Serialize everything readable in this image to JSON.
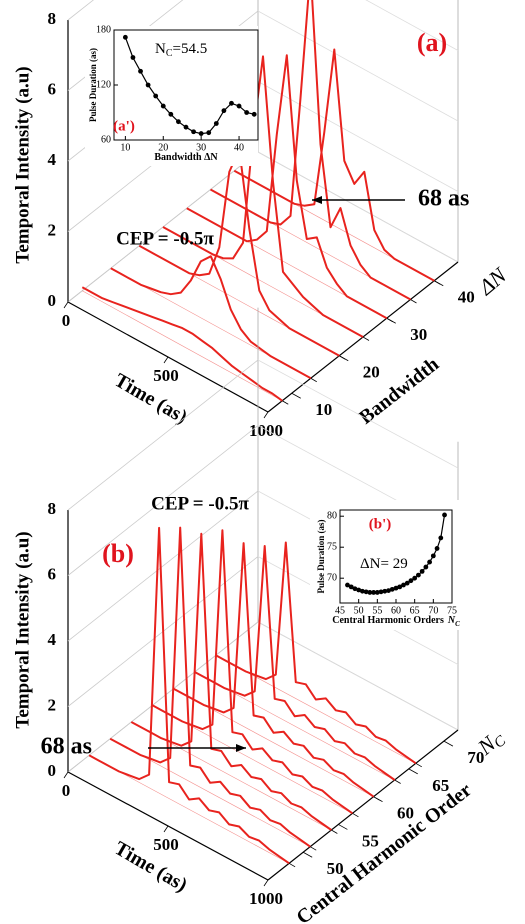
{
  "chart_data": [
    {
      "type": "waterfall3d",
      "panel_label": "(a)",
      "annotation": "CEP = -0.5π",
      "arrow_label": "68 as",
      "z_title": "Temporal Intensity (a.u)",
      "x_title": "Time (as)",
      "y_title": "Bandwidth",
      "y_symbol": "ΔN",
      "color": "#e8231e",
      "xlim": [
        0,
        1000
      ],
      "xticks": [
        0,
        500,
        1000
      ],
      "ylim": [
        5,
        45
      ],
      "yticks": [
        10,
        20,
        30,
        40
      ],
      "zlim": [
        0,
        8
      ],
      "zticks": [
        0,
        2,
        4,
        6,
        8
      ],
      "x": [
        0,
        50,
        100,
        150,
        200,
        250,
        300,
        350,
        400,
        450,
        500,
        550,
        600,
        650,
        700,
        750,
        800,
        850,
        900,
        950,
        1000
      ],
      "traces": [
        {
          "depth": 8,
          "values": [
            0.1,
            0.1,
            0.1,
            0.15,
            0.2,
            0.25,
            0.3,
            0.35,
            0.4,
            0.45,
            0.5,
            0.5,
            0.45,
            0.4,
            0.3,
            0.2,
            0.15,
            0.1,
            0.05,
            0.05,
            0
          ]
        },
        {
          "depth": 14,
          "values": [
            0,
            0,
            0,
            0,
            0.05,
            0.1,
            0.2,
            0.4,
            0.9,
            1.6,
            1.9,
            1.4,
            0.7,
            0.3,
            0.1,
            0.05,
            0,
            0,
            0,
            0,
            0
          ]
        },
        {
          "depth": 20,
          "values": [
            0,
            0,
            0,
            0,
            0,
            0,
            0.1,
            0.3,
            1.2,
            3.5,
            4.3,
            2.2,
            0.6,
            0.2,
            0.1,
            0,
            0,
            0,
            0,
            0,
            0
          ]
        },
        {
          "depth": 25,
          "values": [
            0,
            0,
            0,
            0,
            0,
            0,
            0.05,
            0.2,
            0.8,
            4.0,
            6.4,
            3.0,
            0.6,
            0.4,
            0.2,
            0.1,
            0,
            0,
            0,
            0,
            0
          ]
        },
        {
          "depth": 30,
          "values": [
            0,
            0,
            0,
            0,
            0,
            0,
            0,
            0.2,
            0.6,
            3.5,
            5.9,
            2.5,
            1.0,
            1.2,
            0.5,
            0.2,
            0,
            0,
            0,
            0,
            0
          ]
        },
        {
          "depth": 35,
          "values": [
            0,
            0,
            0,
            0,
            0,
            0,
            0,
            0.1,
            0.5,
            4.0,
            7.8,
            3.0,
            0.8,
            1.5,
            0.6,
            0.2,
            0,
            0,
            0,
            0,
            0
          ]
        },
        {
          "depth": 40,
          "values": [
            0,
            0,
            0,
            0,
            0,
            0,
            0,
            0.1,
            0.3,
            2.5,
            5.0,
            2.0,
            1.5,
            2.0,
            0.5,
            0.1,
            0,
            0,
            0,
            0,
            0
          ]
        }
      ]
    },
    {
      "type": "line",
      "panel_label": "(a')",
      "note_main": "N",
      "note_sub": "C",
      "note_rest": "=54.5",
      "y_title": "Pulse Duration (as)",
      "x_title": "Bandwidth  ΔN",
      "color": "#000000",
      "xlim": [
        7,
        45
      ],
      "xticks": [
        10,
        20,
        30,
        40
      ],
      "ylim": [
        60,
        180
      ],
      "yticks": [
        60,
        120,
        180
      ],
      "x": [
        10,
        12,
        14,
        16,
        18,
        20,
        22,
        24,
        26,
        28,
        30,
        32,
        34,
        36,
        38,
        40,
        42,
        44
      ],
      "values": [
        172,
        150,
        135,
        120,
        108,
        97,
        88,
        80,
        74,
        69,
        67,
        68,
        78,
        92,
        100,
        97,
        90,
        88
      ]
    },
    {
      "type": "waterfall3d",
      "panel_label": "(b)",
      "annotation": "CEP = -0.5π",
      "arrow_label": "68 as",
      "z_title": "Temporal Intensity (a.u)",
      "x_title": "Time (as)",
      "y_title": "Central Harmonic Order",
      "y_symbol": "N",
      "y_symbol_sub": "C",
      "color": "#e8231e",
      "xlim": [
        0,
        1000
      ],
      "xticks": [
        0,
        500,
        1000
      ],
      "ylim": [
        45,
        72
      ],
      "yticks": [
        50,
        55,
        60,
        65,
        70
      ],
      "zlim": [
        0,
        8
      ],
      "zticks": [
        0,
        2,
        4,
        6,
        8
      ],
      "x": [
        0,
        50,
        100,
        150,
        200,
        250,
        300,
        350,
        400,
        450,
        500,
        550,
        600,
        650,
        700,
        750,
        800,
        850,
        900,
        950,
        1000
      ],
      "traces": [
        {
          "depth": 48,
          "values": [
            0,
            0,
            0,
            0,
            0.05,
            0.1,
            0.4,
            8.1,
            0.5,
            0.6,
            0.3,
            0.5,
            0.3,
            0.4,
            0.2,
            0.3,
            0.15,
            0.2,
            0.1,
            0.05,
            0
          ]
        },
        {
          "depth": 51,
          "values": [
            0,
            0,
            0,
            0,
            0.05,
            0.1,
            0.4,
            7.6,
            0.5,
            0.6,
            0.3,
            0.5,
            0.3,
            0.4,
            0.2,
            0.3,
            0.15,
            0.2,
            0.1,
            0.05,
            0
          ]
        },
        {
          "depth": 54,
          "values": [
            0,
            0,
            0,
            0,
            0.05,
            0.1,
            0.4,
            6.9,
            0.5,
            0.6,
            0.3,
            0.5,
            0.3,
            0.4,
            0.2,
            0.3,
            0.15,
            0.2,
            0.1,
            0.05,
            0
          ]
        },
        {
          "depth": 57,
          "values": [
            0,
            0,
            0,
            0,
            0.05,
            0.1,
            0.4,
            6.5,
            0.5,
            0.6,
            0.3,
            0.5,
            0.3,
            0.4,
            0.2,
            0.3,
            0.15,
            0.2,
            0.1,
            0.05,
            0
          ]
        },
        {
          "depth": 60,
          "values": [
            0,
            0,
            0,
            0,
            0.05,
            0.1,
            0.4,
            5.6,
            0.5,
            0.6,
            0.3,
            0.5,
            0.3,
            0.4,
            0.2,
            0.3,
            0.15,
            0.2,
            0.1,
            0.05,
            0
          ]
        },
        {
          "depth": 63,
          "values": [
            0,
            0,
            0,
            0,
            0.05,
            0.1,
            0.4,
            5.0,
            0.5,
            0.6,
            0.3,
            0.5,
            0.3,
            0.4,
            0.2,
            0.3,
            0.15,
            0.2,
            0.1,
            0.05,
            0
          ]
        },
        {
          "depth": 66,
          "values": [
            0,
            0,
            0,
            0,
            0.05,
            0.1,
            0.4,
            4.6,
            0.5,
            0.6,
            0.3,
            0.5,
            0.3,
            0.4,
            0.2,
            0.3,
            0.15,
            0.2,
            0.1,
            0.05,
            0
          ]
        }
      ]
    },
    {
      "type": "line",
      "panel_label": "(b')",
      "note_main": "ΔN= 29",
      "y_title": "Pulse Duration (as)",
      "x_title": "Central Harmonic Orders",
      "x_symbol": "N",
      "x_symbol_sub": "C",
      "color": "#000000",
      "xlim": [
        45,
        75
      ],
      "xticks": [
        45,
        50,
        55,
        60,
        65,
        70,
        75
      ],
      "ylim": [
        66,
        81
      ],
      "yticks": [
        70,
        75,
        80
      ],
      "x": [
        47,
        48,
        49,
        50,
        51,
        52,
        53,
        54,
        55,
        56,
        57,
        58,
        59,
        60,
        61,
        62,
        63,
        64,
        65,
        66,
        67,
        68,
        69,
        70,
        71,
        72,
        73
      ],
      "values": [
        68.9,
        68.6,
        68.3,
        68.1,
        67.9,
        67.8,
        67.7,
        67.7,
        67.7,
        67.8,
        67.9,
        68.0,
        68.2,
        68.4,
        68.6,
        68.9,
        69.2,
        69.6,
        70.0,
        70.5,
        71.1,
        71.8,
        72.6,
        73.6,
        74.8,
        76.5,
        80.2
      ]
    }
  ]
}
